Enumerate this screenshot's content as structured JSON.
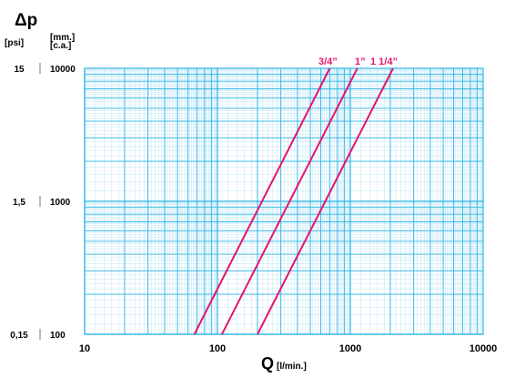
{
  "chart_data": {
    "type": "line",
    "title": "",
    "xlabel_main": "Q",
    "xlabel_unit": "[l/min.]",
    "ylabel_main": "Δp",
    "y_unit_psi": "[psi]",
    "y_unit_mm_line1": "[mm.]",
    "y_unit_mm_line2": "[c.a.]",
    "x_scale": "log",
    "y_scale": "log",
    "xlim": [
      10,
      10000
    ],
    "ylim": [
      100,
      10000
    ],
    "grid": true,
    "x_ticks": [
      {
        "value": 10,
        "label": "10"
      },
      {
        "value": 100,
        "label": "100"
      },
      {
        "value": 1000,
        "label": "1000"
      },
      {
        "value": 10000,
        "label": "10000"
      }
    ],
    "y_ticks": [
      {
        "value": 10000,
        "psi": "15",
        "mm": "10000"
      },
      {
        "value": 1000,
        "psi": "1,5",
        "mm": "1000"
      },
      {
        "value": 100,
        "psi": "0,15",
        "mm": "100"
      }
    ],
    "series": [
      {
        "name": "3/4”",
        "color": "#e5146f",
        "x": [
          67,
          700
        ],
        "y": [
          100,
          10000
        ]
      },
      {
        "name": "1”",
        "color": "#e5146f",
        "x": [
          108,
          1130
        ],
        "y": [
          100,
          10000
        ]
      },
      {
        "name": "1 1/4”",
        "color": "#e5146f",
        "x": [
          200,
          2100
        ],
        "y": [
          100,
          10000
        ]
      }
    ]
  },
  "colors": {
    "grid_major": "#29b3e6",
    "grid_minor": "#bfe6f6",
    "curve": "#e5146f",
    "axis_text": "#000000"
  }
}
